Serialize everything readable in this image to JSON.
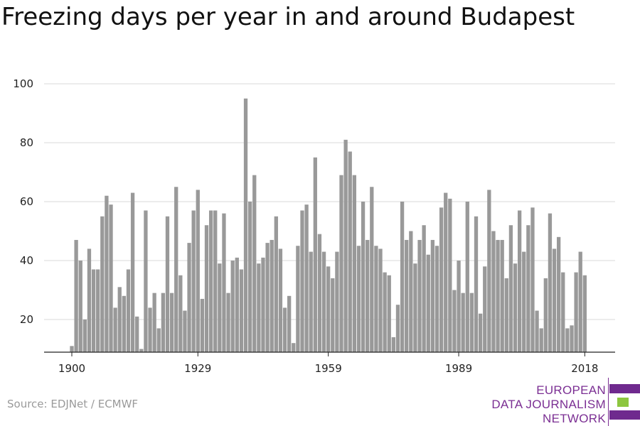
{
  "title": "Freezing days per year in and around Budapest",
  "source": "Source: EDJNet / ECMWF",
  "logo": {
    "lines": [
      "EUROPEAN",
      "DATA JOURNALISM",
      "NETWORK"
    ],
    "colors": {
      "primary": "#6f2a8e",
      "accent": "#8dc63f"
    }
  },
  "chart_data": {
    "type": "bar",
    "title": "Freezing days per year in and around Budapest",
    "xlabel": "",
    "ylabel": "",
    "x_ticks": [
      1900,
      1929,
      1959,
      1989,
      2018
    ],
    "y_ticks": [
      20,
      40,
      60,
      80,
      100
    ],
    "ylim": [
      8,
      100
    ],
    "grid": true,
    "bar_color": "#999999",
    "x_start": 1900,
    "values": [
      11,
      47,
      40,
      20,
      44,
      37,
      37,
      55,
      62,
      59,
      24,
      31,
      28,
      37,
      63,
      21,
      10,
      57,
      24,
      29,
      17,
      29,
      55,
      29,
      65,
      35,
      23,
      46,
      57,
      64,
      27,
      52,
      57,
      57,
      39,
      56,
      29,
      40,
      41,
      37,
      95,
      60,
      69,
      39,
      41,
      46,
      47,
      55,
      44,
      24,
      28,
      12,
      45,
      57,
      59,
      43,
      75,
      49,
      43,
      38,
      34,
      43,
      69,
      81,
      77,
      69,
      45,
      60,
      47,
      65,
      45,
      44,
      36,
      35,
      14,
      25,
      60,
      47,
      50,
      39,
      47,
      52,
      42,
      47,
      45,
      58,
      63,
      61,
      30,
      40,
      29,
      60,
      29,
      55,
      22,
      38,
      64,
      50,
      47,
      47,
      34,
      52,
      39,
      57,
      43,
      52,
      58,
      23,
      17,
      34,
      56,
      44,
      48,
      36,
      17,
      18,
      36,
      43,
      35
    ]
  }
}
